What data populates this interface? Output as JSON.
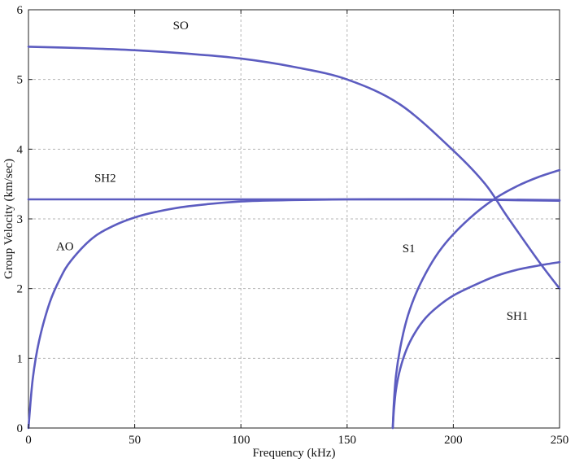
{
  "chart_data": {
    "type": "line",
    "title": "",
    "xlabel": "Frequency (kHz)",
    "ylabel": "Group Velocity (km/sec)",
    "xlim": [
      0,
      250
    ],
    "ylim": [
      0,
      6
    ],
    "xticks": [
      0,
      50,
      100,
      150,
      200,
      250
    ],
    "yticks": [
      0,
      1,
      2,
      3,
      4,
      5,
      6
    ],
    "grid": true,
    "line_color": "#5c5cc0",
    "series": [
      {
        "name": "SO",
        "x": [
          0,
          25,
          50,
          75,
          100,
          125,
          150,
          175,
          200,
          215,
          225,
          240,
          250
        ],
        "y": [
          5.47,
          5.45,
          5.42,
          5.37,
          5.3,
          5.18,
          5.0,
          4.64,
          3.98,
          3.5,
          3.05,
          2.4,
          2.0
        ]
      },
      {
        "name": "SH2",
        "x": [
          0,
          50,
          100,
          150,
          200,
          250
        ],
        "y": [
          3.28,
          3.28,
          3.28,
          3.28,
          3.28,
          3.27
        ]
      },
      {
        "name": "AO",
        "x": [
          0,
          2,
          5,
          10,
          15,
          20,
          30,
          40,
          50,
          60,
          75,
          100,
          125,
          150,
          175,
          200,
          225,
          250
        ],
        "y": [
          0.0,
          0.7,
          1.25,
          1.8,
          2.15,
          2.4,
          2.72,
          2.9,
          3.02,
          3.1,
          3.18,
          3.25,
          3.27,
          3.28,
          3.28,
          3.28,
          3.27,
          3.26
        ],
        "smooth": true
      },
      {
        "name": "S1",
        "x": [
          171.5,
          172,
          173,
          175,
          178,
          182,
          187,
          193,
          200,
          210,
          220,
          230,
          240,
          250
        ],
        "y": [
          0.0,
          0.35,
          0.75,
          1.15,
          1.55,
          1.9,
          2.22,
          2.52,
          2.78,
          3.07,
          3.3,
          3.47,
          3.6,
          3.7
        ],
        "smooth": true
      },
      {
        "name": "SH1",
        "x": [
          171.5,
          172,
          173,
          175,
          178,
          182,
          187,
          193,
          200,
          210,
          220,
          230,
          240,
          250
        ],
        "y": [
          0.0,
          0.25,
          0.55,
          0.85,
          1.13,
          1.37,
          1.58,
          1.75,
          1.9,
          2.05,
          2.18,
          2.27,
          2.33,
          2.38
        ],
        "smooth": true
      }
    ],
    "annotations": [
      {
        "text": "SO",
        "x": 68,
        "y": 5.72
      },
      {
        "text": "SH2",
        "x": 31,
        "y": 3.53
      },
      {
        "text": "AO",
        "x": 13,
        "y": 2.55
      },
      {
        "text": "S1",
        "x": 176,
        "y": 2.52
      },
      {
        "text": "SH1",
        "x": 225,
        "y": 1.55
      }
    ]
  }
}
